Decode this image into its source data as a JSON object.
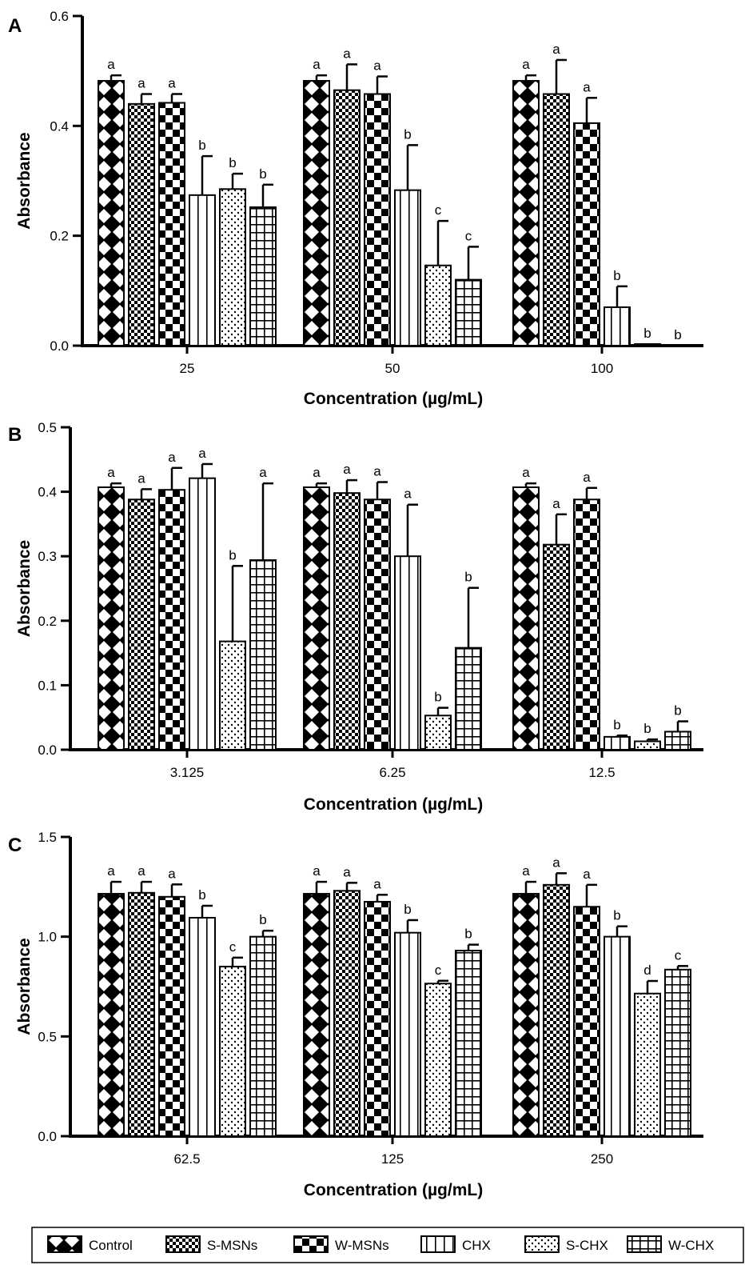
{
  "legend": [
    {
      "name": "Control",
      "pattern": "pat-control"
    },
    {
      "name": "S-MSNs",
      "pattern": "pat-smsns"
    },
    {
      "name": "W-MSNs",
      "pattern": "pat-wmsns"
    },
    {
      "name": "CHX",
      "pattern": "pat-chx"
    },
    {
      "name": "S-CHX",
      "pattern": "pat-schx"
    },
    {
      "name": "W-CHX",
      "pattern": "pat-wchx"
    }
  ],
  "chart_data": [
    {
      "type": "bar",
      "panel": "A",
      "title": "",
      "xlabel": "Concentration (µg/mL)",
      "ylabel": "Absorbance",
      "ylim": [
        0,
        0.6
      ],
      "yticks": [
        "0.0",
        "0.2",
        "0.4",
        "0.6"
      ],
      "categories": [
        "25",
        "50",
        "100"
      ],
      "series": [
        {
          "name": "Control",
          "values": [
            0.482,
            0.482,
            0.482
          ],
          "errors": [
            0.01,
            0.01,
            0.01
          ],
          "labels": [
            "a",
            "a",
            "a"
          ]
        },
        {
          "name": "S-MSNs",
          "values": [
            0.44,
            0.465,
            0.458
          ],
          "errors": [
            0.018,
            0.047,
            0.062
          ],
          "labels": [
            "a",
            "a",
            "a"
          ]
        },
        {
          "name": "W-MSNs",
          "values": [
            0.442,
            0.458,
            0.405
          ],
          "errors": [
            0.016,
            0.032,
            0.046
          ],
          "labels": [
            "a",
            "a",
            "a"
          ]
        },
        {
          "name": "CHX",
          "values": [
            0.274,
            0.283,
            0.07
          ],
          "errors": [
            0.071,
            0.082,
            0.038
          ],
          "labels": [
            "b",
            "b",
            "b"
          ]
        },
        {
          "name": "S-CHX",
          "values": [
            0.285,
            0.146,
            0.003
          ],
          "errors": [
            0.028,
            0.081,
            0
          ],
          "labels": [
            "b",
            "c",
            "b"
          ]
        },
        {
          "name": "W-CHX",
          "values": [
            0.252,
            0.12,
            0.0
          ],
          "errors": [
            0.041,
            0.06,
            0
          ],
          "labels": [
            "b",
            "c",
            "b"
          ]
        }
      ]
    },
    {
      "type": "bar",
      "panel": "B",
      "title": "",
      "xlabel": "Concentration (µg/mL)",
      "ylabel": "Absorbance",
      "ylim": [
        0,
        0.5
      ],
      "yticks": [
        "0.0",
        "0.1",
        "0.2",
        "0.3",
        "0.4",
        "0.5"
      ],
      "categories": [
        "3.125",
        "6.25",
        "12.5"
      ],
      "series": [
        {
          "name": "Control",
          "values": [
            0.407,
            0.407,
            0.407
          ],
          "errors": [
            0.006,
            0.006,
            0.006
          ],
          "labels": [
            "a",
            "a",
            "a"
          ]
        },
        {
          "name": "S-MSNs",
          "values": [
            0.388,
            0.398,
            0.318
          ],
          "errors": [
            0.016,
            0.02,
            0.047
          ],
          "labels": [
            "a",
            "a",
            "a"
          ]
        },
        {
          "name": "W-MSNs",
          "values": [
            0.403,
            0.388,
            0.388
          ],
          "errors": [
            0.034,
            0.027,
            0.018
          ],
          "labels": [
            "a",
            "a",
            "a"
          ]
        },
        {
          "name": "CHX",
          "values": [
            0.421,
            0.3,
            0.02
          ],
          "errors": [
            0.022,
            0.08,
            0.002
          ],
          "labels": [
            "a",
            "a",
            "b"
          ]
        },
        {
          "name": "S-CHX",
          "values": [
            0.168,
            0.053,
            0.013
          ],
          "errors": [
            0.117,
            0.012,
            0.003
          ],
          "labels": [
            "b",
            "b",
            "b"
          ]
        },
        {
          "name": "W-CHX",
          "values": [
            0.294,
            0.158,
            0.028
          ],
          "errors": [
            0.119,
            0.093,
            0.016
          ],
          "labels": [
            "a",
            "b",
            "b"
          ]
        }
      ]
    },
    {
      "type": "bar",
      "panel": "C",
      "title": "",
      "xlabel": "Concentration (µg/mL)",
      "ylabel": "Absorbance",
      "ylim": [
        0,
        1.5
      ],
      "yticks": [
        "0.0",
        "0.5",
        "1.0",
        "1.5"
      ],
      "categories": [
        "62.5",
        "125",
        "250"
      ],
      "series": [
        {
          "name": "Control",
          "values": [
            1.215,
            1.215,
            1.215
          ],
          "errors": [
            0.06,
            0.06,
            0.06
          ],
          "labels": [
            "a",
            "a",
            "a"
          ]
        },
        {
          "name": "S-MSNs",
          "values": [
            1.22,
            1.23,
            1.26
          ],
          "errors": [
            0.055,
            0.04,
            0.058
          ],
          "labels": [
            "a",
            "a",
            "a"
          ]
        },
        {
          "name": "W-MSNs",
          "values": [
            1.2,
            1.175,
            1.15
          ],
          "errors": [
            0.062,
            0.035,
            0.11
          ],
          "labels": [
            "a",
            "a",
            "a"
          ]
        },
        {
          "name": "CHX",
          "values": [
            1.095,
            1.02,
            1.0
          ],
          "errors": [
            0.06,
            0.063,
            0.052
          ],
          "labels": [
            "b",
            "b",
            "b"
          ]
        },
        {
          "name": "S-CHX",
          "values": [
            0.85,
            0.765,
            0.715
          ],
          "errors": [
            0.045,
            0.014,
            0.063
          ],
          "labels": [
            "c",
            "c",
            "d"
          ]
        },
        {
          "name": "W-CHX",
          "values": [
            1.0,
            0.93,
            0.835
          ],
          "errors": [
            0.03,
            0.03,
            0.018
          ],
          "labels": [
            "b",
            "b",
            "c"
          ]
        }
      ]
    }
  ]
}
